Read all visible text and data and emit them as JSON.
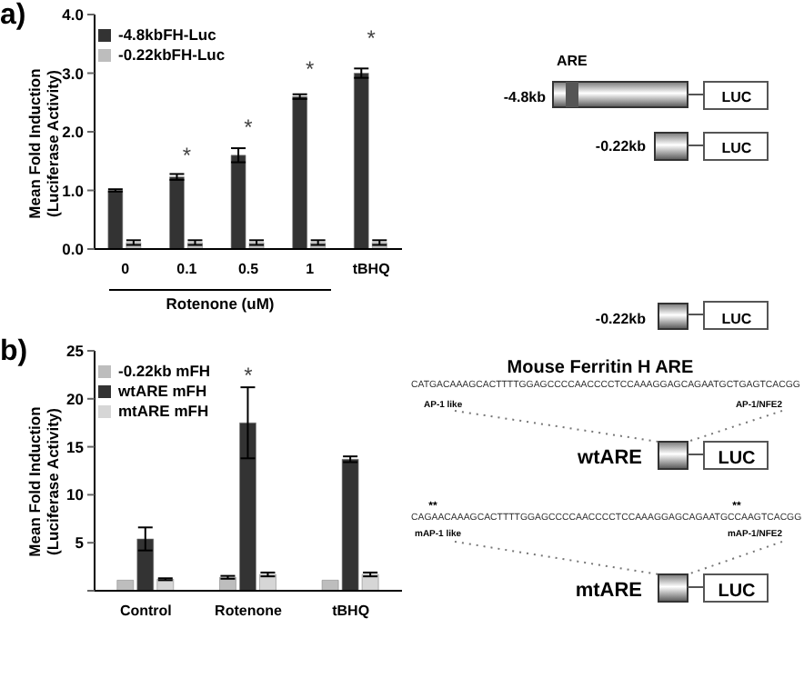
{
  "chart_data": [
    {
      "type": "bar",
      "title": "a)",
      "xlabel": "Rotenone (uM)",
      "ylabel": "Mean Fold Induction\n(Luciferase Activity)",
      "categories": [
        "0",
        "0.1",
        "0.5",
        "1",
        "tBHQ"
      ],
      "series": [
        {
          "name": "-4.8kbFH-Luc",
          "color": "#333333",
          "values": [
            1.0,
            1.23,
            1.6,
            2.6,
            3.0
          ],
          "errors": [
            0.02,
            0.05,
            0.12,
            0.04,
            0.08
          ]
        },
        {
          "name": "-0.22kbFH-Luc",
          "color": "#bdbdbd",
          "values": [
            0.11,
            0.11,
            0.11,
            0.11,
            0.11
          ],
          "errors": [
            0.04,
            0.04,
            0.04,
            0.04,
            0.04
          ]
        }
      ],
      "ylim": [
        0,
        4
      ],
      "yticks": [
        {
          "value": 0,
          "label": "0.0"
        },
        {
          "value": 1,
          "label": "1.0"
        },
        {
          "value": 2,
          "label": "2.0"
        },
        {
          "value": 3,
          "label": "3.0"
        },
        {
          "value": 4,
          "label": "4.0"
        }
      ],
      "legend": "top left",
      "annotations": [
        "*",
        "*",
        "*",
        "*"
      ]
    },
    {
      "type": "bar",
      "title": "b)",
      "ylabel": "Mean Fold Induction\n(Luciferase Activity)",
      "categories": [
        "Control",
        "Rotenone",
        "tBHQ"
      ],
      "series": [
        {
          "name": "-0.22kb mFH",
          "color": "#bdbdbd",
          "values": [
            1.1,
            1.4,
            1.1
          ],
          "errors": [
            null,
            0.15,
            null
          ]
        },
        {
          "name": "wtARE mFH",
          "color": "#333333",
          "values": [
            5.4,
            17.5,
            13.7
          ],
          "errors": [
            1.2,
            3.7,
            0.3
          ]
        },
        {
          "name": "mtARE mFH",
          "color": "#d6d6d6",
          "values": [
            1.2,
            1.7,
            1.7
          ],
          "errors": [
            0.1,
            0.2,
            0.2
          ]
        }
      ],
      "ylim": [
        0,
        25
      ],
      "yticks": [
        {
          "value": 0,
          "label": null
        },
        5,
        10,
        15,
        20,
        25
      ],
      "legend": "top left",
      "annotations": [
        "*"
      ]
    },
    {
      "type": "other",
      "title": "Mouse Ferritin H ARE",
      "annotations": [
        "ARE",
        "-4.8kb",
        "LUC",
        "-0.22kb",
        "LUC",
        "-0.22kb",
        "LUC",
        "CATGACAAAGCACTTTTGGAGCCCCAACCCCTCCAAAGGAGCAGAATGCTGAGTCACGG",
        "AP-1 like",
        "AP-1/NFE2",
        "wtARE",
        "LUC",
        "**",
        "**",
        "CAGAACAAAGCACTTTTGGAGCCCCAACCCCTCCAAAGGAGCAGAATGCCAAGTCACGG",
        "mAP-1 like",
        "mAP-1/NFE2",
        "mtARE",
        "LUC"
      ]
    }
  ]
}
